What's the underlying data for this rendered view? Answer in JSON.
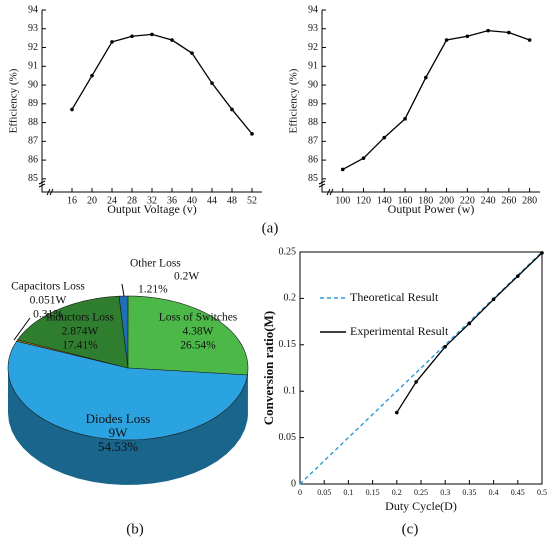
{
  "panel_labels": [
    "(a)",
    "(b)",
    "(c)"
  ],
  "chart_data": [
    {
      "type": "line",
      "xlabel": "Output Voltage (v)",
      "ylabel": "Efficiency (%)",
      "x": [
        16,
        20,
        24,
        28,
        32,
        36,
        40,
        44,
        48,
        52
      ],
      "series": [
        {
          "color": "#000000",
          "markers": true,
          "values": [
            88.7,
            90.5,
            92.3,
            92.6,
            92.7,
            92.4,
            91.7,
            90.1,
            88.7,
            87.4
          ]
        }
      ],
      "xlim": [
        10,
        54
      ],
      "xticks": [
        16,
        20,
        24,
        28,
        32,
        36,
        40,
        44,
        48,
        52
      ],
      "ylim": [
        84.3,
        94
      ],
      "yticks": [
        85,
        86,
        87,
        88,
        89,
        90,
        91,
        92,
        93,
        94
      ],
      "grid": false,
      "axis_break": true
    },
    {
      "type": "line",
      "xlabel": "Output Power (w)",
      "ylabel": "Efficiency (%)",
      "x": [
        100,
        120,
        140,
        160,
        180,
        200,
        220,
        240,
        260,
        280
      ],
      "series": [
        {
          "color": "#000000",
          "markers": true,
          "values": [
            85.5,
            86.1,
            87.2,
            88.2,
            90.4,
            92.4,
            92.6,
            92.9,
            92.8,
            92.4
          ]
        }
      ],
      "xlim": [
        80,
        290
      ],
      "xticks": [
        100,
        120,
        140,
        160,
        180,
        200,
        220,
        240,
        260,
        280
      ],
      "ylim": [
        84.3,
        94
      ],
      "yticks": [
        85,
        86,
        87,
        88,
        89,
        90,
        91,
        92,
        93,
        94
      ],
      "grid": false,
      "axis_break": true
    },
    {
      "type": "pie",
      "categories": [
        "Other Loss",
        "Loss of Switches",
        "Diodes Loss",
        "Capacitors Loss",
        "Inductors Loss"
      ],
      "power_labels": [
        "0.2W",
        "4.38W",
        "9W",
        "0.051W",
        "2.874W"
      ],
      "values": [
        1.21,
        26.54,
        54.53,
        0.31,
        17.41
      ],
      "value_labels": [
        "1.21%",
        "26.54%",
        "54.53%",
        "0.31%",
        "17.41%"
      ],
      "colors": [
        "#1f6fb5",
        "#4cb848",
        "#2aa3e0",
        "#c8860a",
        "#2f7d2f"
      ]
    },
    {
      "type": "line",
      "xlabel": "Duty Cycle(D)",
      "ylabel": "Conversion ratio(M)",
      "series": [
        {
          "name": "Theoretical Result",
          "color": "#2a9bd8",
          "dash": true,
          "markers": false,
          "x": [
            0,
            0.5
          ],
          "values": [
            0,
            0.25
          ]
        },
        {
          "name": "Experimental Result",
          "color": "#000000",
          "dash": false,
          "markers": true,
          "x": [
            0.2,
            0.24,
            0.3,
            0.35,
            0.4,
            0.45,
            0.5
          ],
          "values": [
            0.077,
            0.11,
            0.148,
            0.173,
            0.199,
            0.224,
            0.249
          ]
        }
      ],
      "xlim": [
        0,
        0.5
      ],
      "xticks": [
        0,
        0.05,
        0.1,
        0.15,
        0.2,
        0.25,
        0.3,
        0.35,
        0.4,
        0.45,
        0.5
      ],
      "ylim": [
        0,
        0.25
      ],
      "yticks": [
        0,
        0.05,
        0.1,
        0.15,
        0.2,
        0.25
      ],
      "grid": false,
      "frame": true
    }
  ]
}
